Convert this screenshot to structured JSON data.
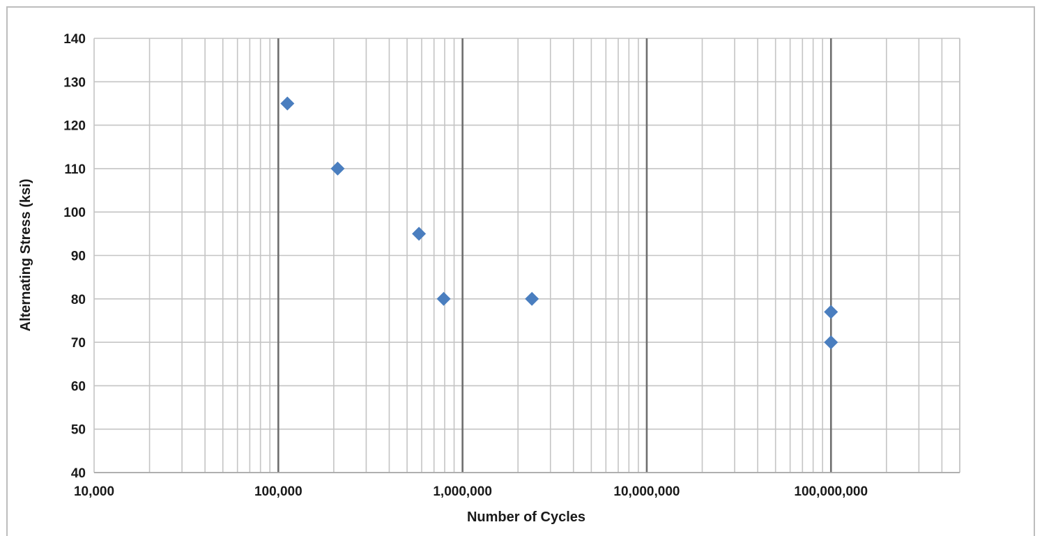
{
  "chart_data": {
    "type": "scatter",
    "title": "",
    "xlabel": "Number of Cycles",
    "ylabel": "Alternating Stress (ksi)",
    "x_scale": "log",
    "xlim": [
      10000,
      500000000
    ],
    "ylim": [
      40,
      140
    ],
    "x_ticks": [
      10000,
      100000,
      1000000,
      10000000,
      100000000
    ],
    "x_tick_labels": [
      "10,000",
      "100,000",
      "1,000,000",
      "10,000,000",
      "100,000,000"
    ],
    "y_ticks": [
      40,
      50,
      60,
      70,
      80,
      90,
      100,
      110,
      120,
      130,
      140
    ],
    "y_tick_labels": [
      "40",
      "50",
      "60",
      "70",
      "80",
      "90",
      "100",
      "110",
      "120",
      "130",
      "140"
    ],
    "grid": true,
    "legend": "none",
    "marker": "diamond",
    "marker_color": "#4a7ebf",
    "series": [
      {
        "x": [
          112000,
          210000,
          580000,
          790000,
          2380000,
          100000000,
          100000000
        ],
        "y": [
          125,
          110,
          95,
          80,
          80,
          77,
          70
        ]
      }
    ]
  }
}
